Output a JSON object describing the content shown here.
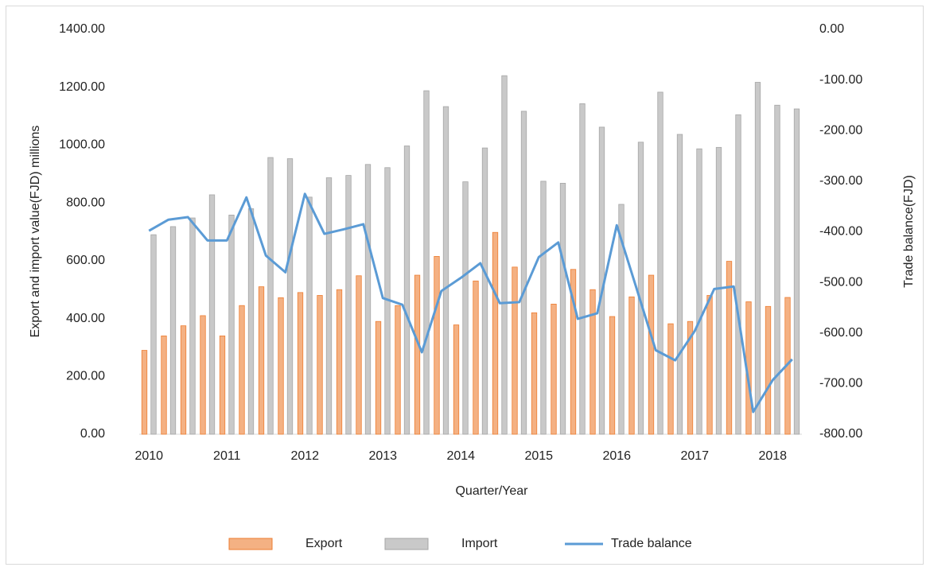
{
  "chart_data": {
    "type": "bar-line",
    "x_label": "Quarter/Year",
    "y_label": "Export and import value(FJD) millions",
    "y2_label": "Trade balance(FJD)",
    "categories": [
      "2010",
      null,
      null,
      null,
      "2011",
      null,
      null,
      null,
      "2012",
      null,
      null,
      null,
      "2013",
      null,
      null,
      null,
      "2014",
      null,
      null,
      null,
      "2015",
      null,
      null,
      null,
      "2016",
      null,
      null,
      null,
      "2017",
      null,
      null,
      null,
      "2018",
      null
    ],
    "series": [
      {
        "name": "Export",
        "type": "bar",
        "color": "#f4b183",
        "values": [
          290,
          340,
          375,
          410,
          340,
          445,
          510,
          472,
          490,
          480,
          500,
          548,
          390,
          445,
          550,
          615,
          378,
          530,
          698,
          578,
          420,
          450,
          570,
          500,
          407,
          475,
          550,
          382,
          390,
          480,
          598,
          458,
          442,
          473
        ]
      },
      {
        "name": "Import",
        "type": "bar",
        "color": "#c9c9c9",
        "values": [
          690,
          718,
          748,
          828,
          758,
          780,
          957,
          953,
          820,
          887,
          895,
          933,
          922,
          997,
          1188,
          1133,
          873,
          990,
          1240,
          1117,
          875,
          868,
          1143,
          1062,
          795,
          1010,
          1183,
          1037,
          987,
          992,
          1105,
          1217,
          1138,
          1125
        ]
      },
      {
        "name": "Trade balance",
        "type": "line",
        "axis": "y2",
        "color": "#5b9bd5",
        "values": [
          -398,
          -376,
          -371,
          -417,
          -417,
          -332,
          -447,
          -480,
          -325,
          -404,
          -395,
          -385,
          -531,
          -544,
          -638,
          -517,
          -491,
          -462,
          -541,
          -539,
          -450,
          -421,
          -572,
          -561,
          -387,
          -510,
          -634,
          -654,
          -596,
          -513,
          -508,
          -756,
          -693,
          -652
        ]
      }
    ],
    "ylim": [
      0,
      1400
    ],
    "yticks": [
      {
        "value": 0,
        "label": "0.00"
      },
      {
        "value": 200,
        "label": "200.00"
      },
      {
        "value": 400,
        "label": "400.00"
      },
      {
        "value": 600,
        "label": "600.00"
      },
      {
        "value": 800,
        "label": "800.00"
      },
      {
        "value": 1000,
        "label": "1000.00"
      },
      {
        "value": 1200,
        "label": "1200.00"
      },
      {
        "value": 1400,
        "label": "1400.00"
      }
    ],
    "y2lim": [
      -800,
      0
    ],
    "y2ticks": [
      {
        "value": -800,
        "label": "-800.00"
      },
      {
        "value": -700,
        "label": "-700.00"
      },
      {
        "value": -600,
        "label": "-600.00"
      },
      {
        "value": -500,
        "label": "-500.00"
      },
      {
        "value": -400,
        "label": "-400.00"
      },
      {
        "value": -300,
        "label": "-300.00"
      },
      {
        "value": -200,
        "label": "-200.00"
      },
      {
        "value": -100,
        "label": "-100.00"
      },
      {
        "value": 0,
        "label": "0.00"
      }
    ],
    "legend": "bottom"
  }
}
